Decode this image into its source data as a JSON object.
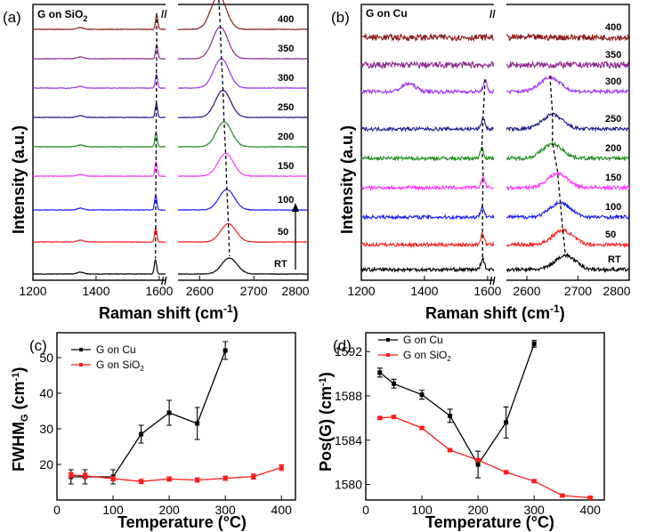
{
  "colors": {
    "400": "#8b1a1a",
    "350": "#8b2c8b",
    "300": "#9b30ff",
    "250": "#1a1a8b",
    "200": "#1a8b1a",
    "150": "#ff33ff",
    "100": "#1a1aff",
    "50": "#ff1a1a",
    "RT": "#000000",
    "cu": "#000000",
    "sio2": "#ff1a1a"
  },
  "chart_data": [
    {
      "type": "line",
      "panel": "(a)",
      "title": "G on SiO2",
      "xlabel": "Raman shift (cm-1)",
      "ylabel": "Intensity (a.u.)",
      "x_ticks_left": [
        "1200",
        "1400",
        "1600"
      ],
      "x_ticks_right": [
        "2600",
        "2700",
        "2800"
      ],
      "xlim_left": [
        1200,
        1620
      ],
      "xlim_right": [
        2560,
        2800
      ],
      "series_labels": [
        "400",
        "350",
        "300",
        "250",
        "200",
        "150",
        "100",
        "50",
        "RT"
      ],
      "peak_G": [
        1592,
        1592,
        1591,
        1591,
        1590,
        1590,
        1589,
        1589,
        1588
      ],
      "peak_2D": [
        2635,
        2638,
        2640,
        2643,
        2645,
        2648,
        2650,
        2653,
        2655
      ]
    },
    {
      "type": "line",
      "panel": "(b)",
      "title": "G on Cu",
      "xlabel": "Raman shift (cm-1)",
      "ylabel": "Intensity (a.u.)",
      "x_ticks_left": [
        "1200",
        "1400",
        "1600"
      ],
      "x_ticks_right": [
        "2600",
        "2700",
        "2800"
      ],
      "xlim_left": [
        1200,
        1620
      ],
      "xlim_right": [
        2560,
        2800
      ],
      "series_labels": [
        "400",
        "350",
        "300",
        "250",
        "200",
        "150",
        "100",
        "50",
        "RT"
      ],
      "peak_G": [
        null,
        null,
        1592,
        1586,
        1582,
        1586,
        1584,
        1584,
        1584
      ],
      "peak_2D": [
        null,
        null,
        2645,
        2650,
        2650,
        2660,
        2665,
        2670,
        2675
      ]
    },
    {
      "type": "line",
      "panel": "(c)",
      "xlabel": "Temperature (°C)",
      "ylabel": "FWHMG (cm-1)",
      "xlim": [
        0,
        425
      ],
      "ylim": [
        10,
        57
      ],
      "x_ticks": [
        "0",
        "100",
        "200",
        "300",
        "400"
      ],
      "y_ticks": [
        "20",
        "30",
        "40",
        "50"
      ],
      "series": [
        {
          "name": "G on Cu",
          "x": [
            25,
            50,
            100,
            150,
            200,
            250,
            300
          ],
          "values": [
            16.5,
            16.5,
            16.5,
            28.5,
            34.5,
            31.5,
            52
          ],
          "err": [
            2,
            2,
            2,
            2.5,
            3.5,
            4.5,
            2.5
          ]
        },
        {
          "name": "G on SiO2",
          "x": [
            25,
            50,
            100,
            150,
            200,
            250,
            300,
            350,
            400
          ],
          "values": [
            17.0,
            16.8,
            16.0,
            15.2,
            15.9,
            15.6,
            16.1,
            16.6,
            19.1
          ],
          "err": [
            0.7,
            0.7,
            0.6,
            0.6,
            0.6,
            0.6,
            0.6,
            0.7,
            0.8
          ]
        }
      ]
    },
    {
      "type": "line",
      "panel": "(d)",
      "xlabel": "Temperature (°C)",
      "ylabel": "Pos(G) (cm-1)",
      "xlim": [
        0,
        425
      ],
      "ylim": [
        1578.6,
        1593.7
      ],
      "x_ticks": [
        "0",
        "100",
        "200",
        "300",
        "400"
      ],
      "y_ticks": [
        "1580",
        "1584",
        "1588",
        "1592"
      ],
      "series": [
        {
          "name": "G on Cu",
          "x": [
            25,
            50,
            100,
            150,
            200,
            250,
            300
          ],
          "values": [
            1590.1,
            1589.1,
            1588.1,
            1586.2,
            1581.8,
            1585.6,
            1592.7
          ],
          "err": [
            0.4,
            0.4,
            0.4,
            0.6,
            1.2,
            1.4,
            0.3
          ]
        },
        {
          "name": "G on SiO2",
          "x": [
            25,
            50,
            100,
            150,
            200,
            250,
            300,
            350,
            400
          ],
          "values": [
            1586.0,
            1586.1,
            1585.1,
            1583.1,
            1582.2,
            1581.1,
            1580.3,
            1579.0,
            1578.8
          ],
          "err": [
            0.1,
            0.1,
            0.1,
            0.1,
            0.1,
            0.1,
            0.1,
            0.1,
            0.1
          ]
        }
      ]
    }
  ],
  "labels": {
    "a": "(a)",
    "b": "(b)",
    "c": "(c)",
    "d": "(d)",
    "title_a": "G on SiO",
    "title_a_sub": "2",
    "title_b": "G on Cu",
    "raman_main": "Raman shift (cm",
    "raman_sup": "-1",
    "raman_close": ")",
    "intensity": "Intensity (a.u.)",
    "temperature": "Temperature (°C)",
    "fwhm_main": "FWHM",
    "fwhm_sub": "G",
    "fwhm_unit": " (cm",
    "fwhm_sup": "-1",
    "fwhm_close": ")",
    "pos_main": "Pos(G) (cm",
    "pos_sup": "-1",
    "pos_close": ")",
    "leg_cu": "G on Cu",
    "leg_sio": "G on SiO",
    "leg_sio_sub": "2",
    "axis_break": "//"
  }
}
